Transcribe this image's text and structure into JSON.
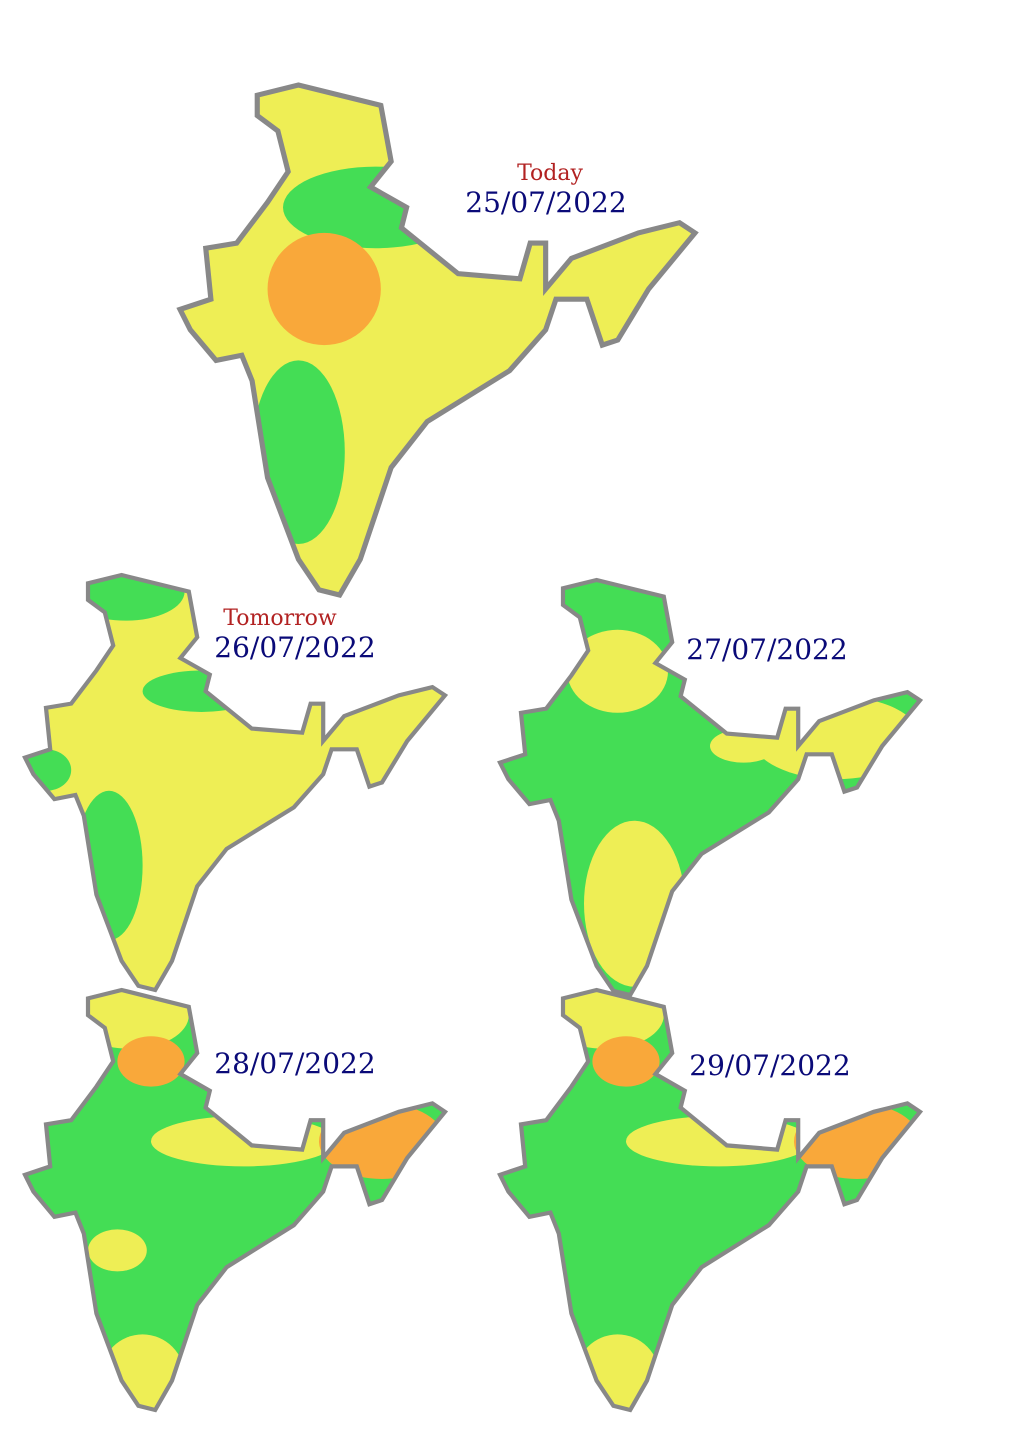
{
  "maps": [
    {
      "label": "Today",
      "date": "25/07/2022"
    },
    {
      "label": "Tomorrow",
      "date": "26/07/2022"
    },
    {
      "date": "27/07/2022"
    },
    {
      "date": "28/07/2022"
    },
    {
      "date": "29/07/2022"
    }
  ]
}
